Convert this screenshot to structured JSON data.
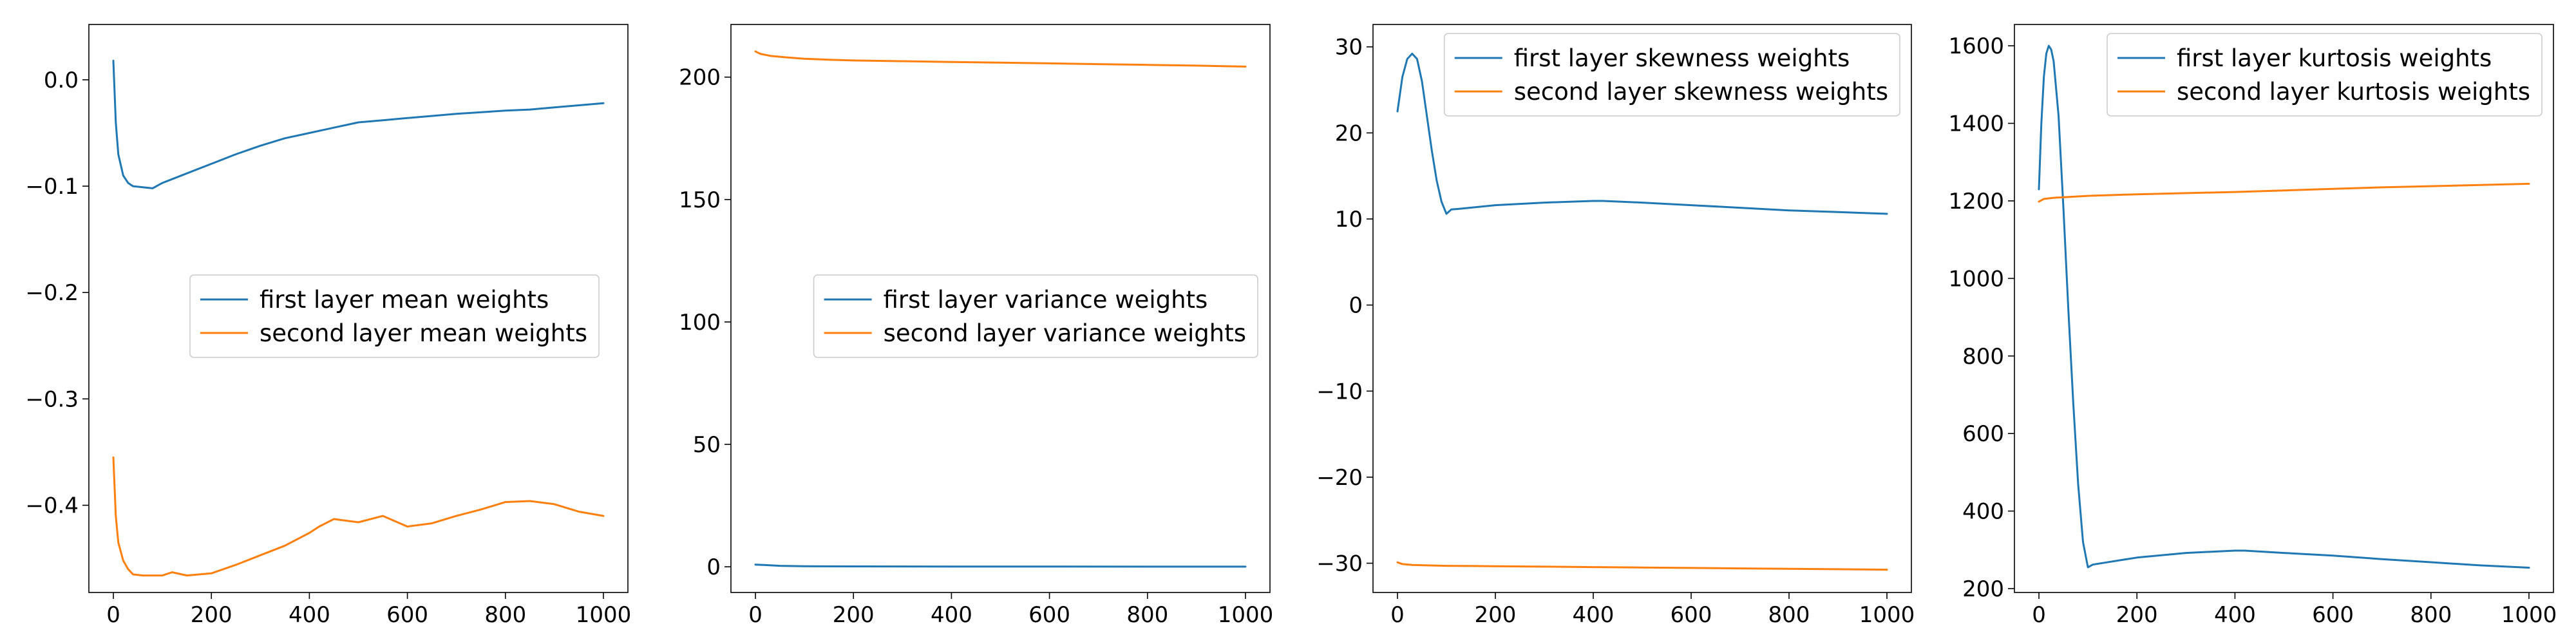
{
  "chart_data": [
    {
      "type": "line",
      "xlim": [
        -50,
        1050
      ],
      "ylim": [
        -0.482,
        0.052
      ],
      "xticks": [
        0,
        200,
        400,
        600,
        800,
        1000
      ],
      "yticks": [
        -0.4,
        -0.3,
        -0.2,
        -0.1,
        0.0
      ],
      "ytick_labels": [
        "−0.4",
        "−0.3",
        "−0.2",
        "−0.1",
        "0.0"
      ],
      "legend_position": "center-right",
      "series": [
        {
          "name": "first layer mean weights",
          "color": "#1f77b4",
          "x": [
            0,
            5,
            10,
            20,
            30,
            40,
            60,
            80,
            100,
            150,
            200,
            250,
            300,
            350,
            400,
            450,
            500,
            550,
            600,
            700,
            800,
            850,
            900,
            950,
            1000
          ],
          "y": [
            0.018,
            -0.04,
            -0.07,
            -0.09,
            -0.097,
            -0.1,
            -0.101,
            -0.102,
            -0.097,
            -0.088,
            -0.079,
            -0.07,
            -0.062,
            -0.055,
            -0.05,
            -0.045,
            -0.04,
            -0.038,
            -0.036,
            -0.032,
            -0.029,
            -0.028,
            -0.026,
            -0.024,
            -0.022
          ]
        },
        {
          "name": "second layer mean weights",
          "color": "#ff7f0e",
          "x": [
            0,
            5,
            10,
            20,
            30,
            40,
            60,
            80,
            100,
            120,
            150,
            200,
            250,
            300,
            350,
            400,
            420,
            450,
            500,
            550,
            600,
            650,
            700,
            750,
            800,
            850,
            900,
            950,
            1000
          ],
          "y": [
            -0.355,
            -0.41,
            -0.435,
            -0.452,
            -0.46,
            -0.465,
            -0.466,
            -0.466,
            -0.466,
            -0.463,
            -0.466,
            -0.464,
            -0.456,
            -0.447,
            -0.438,
            -0.426,
            -0.42,
            -0.413,
            -0.416,
            -0.41,
            -0.42,
            -0.417,
            -0.41,
            -0.404,
            -0.397,
            -0.396,
            -0.399,
            -0.406,
            -0.41
          ]
        }
      ]
    },
    {
      "type": "line",
      "xlim": [
        -50,
        1050
      ],
      "ylim": [
        -10.5,
        221.5
      ],
      "xticks": [
        0,
        200,
        400,
        600,
        800,
        1000
      ],
      "yticks": [
        0,
        50,
        100,
        150,
        200
      ],
      "ytick_labels": [
        "0",
        "50",
        "100",
        "150",
        "200"
      ],
      "legend_position": "center-right",
      "series": [
        {
          "name": "first layer variance weights",
          "color": "#1f77b4",
          "x": [
            0,
            20,
            50,
            100,
            200,
            400,
            600,
            800,
            1000
          ],
          "y": [
            0.9,
            0.7,
            0.4,
            0.2,
            0.15,
            0.1,
            0.1,
            0.05,
            0.05
          ]
        },
        {
          "name": "second layer variance weights",
          "color": "#ff7f0e",
          "x": [
            0,
            10,
            30,
            60,
            100,
            150,
            200,
            300,
            400,
            500,
            600,
            700,
            800,
            900,
            1000
          ],
          "y": [
            210.5,
            209.5,
            208.7,
            208.1,
            207.5,
            207.1,
            206.8,
            206.5,
            206.2,
            205.9,
            205.6,
            205.3,
            205.0,
            204.7,
            204.3
          ]
        }
      ]
    },
    {
      "type": "line",
      "xlim": [
        -50,
        1050
      ],
      "ylim": [
        -33.4,
        32.6
      ],
      "xticks": [
        0,
        200,
        400,
        600,
        800,
        1000
      ],
      "yticks": [
        -30,
        -20,
        -10,
        0,
        10,
        20,
        30
      ],
      "ytick_labels": [
        "−30",
        "−20",
        "−10",
        "0",
        "10",
        "20",
        "30"
      ],
      "legend_position": "upper-right",
      "series": [
        {
          "name": "first layer skewness weights",
          "color": "#1f77b4",
          "x": [
            0,
            10,
            20,
            30,
            40,
            50,
            60,
            70,
            80,
            90,
            100,
            110,
            130,
            200,
            300,
            400,
            420,
            500,
            600,
            700,
            800,
            900,
            1000
          ],
          "y": [
            22.5,
            26.5,
            28.6,
            29.2,
            28.6,
            26.0,
            22.0,
            18.0,
            14.5,
            12.0,
            10.6,
            11.1,
            11.2,
            11.6,
            11.9,
            12.1,
            12.1,
            11.9,
            11.6,
            11.3,
            11.0,
            10.8,
            10.6
          ]
        },
        {
          "name": "second layer skewness weights",
          "color": "#ff7f0e",
          "x": [
            0,
            10,
            30,
            60,
            100,
            200,
            300,
            400,
            500,
            600,
            700,
            800,
            900,
            1000
          ],
          "y": [
            -29.9,
            -30.1,
            -30.2,
            -30.25,
            -30.3,
            -30.35,
            -30.4,
            -30.45,
            -30.5,
            -30.55,
            -30.6,
            -30.65,
            -30.7,
            -30.75
          ]
        }
      ]
    },
    {
      "type": "line",
      "xlim": [
        -50,
        1050
      ],
      "ylim": [
        190,
        1655
      ],
      "xticks": [
        0,
        200,
        400,
        600,
        800,
        1000
      ],
      "yticks": [
        200,
        400,
        600,
        800,
        1000,
        1200,
        1400,
        1600
      ],
      "ytick_labels": [
        "200",
        "400",
        "600",
        "800",
        "1000",
        "1200",
        "1400",
        "1600"
      ],
      "legend_position": "upper-right",
      "series": [
        {
          "name": "first layer kurtosis weights",
          "color": "#1f77b4",
          "x": [
            0,
            5,
            10,
            15,
            20,
            25,
            30,
            40,
            50,
            60,
            70,
            80,
            90,
            100,
            110,
            150,
            200,
            300,
            400,
            420,
            500,
            600,
            700,
            800,
            900,
            1000
          ],
          "y": [
            1230,
            1400,
            1520,
            1580,
            1600,
            1590,
            1560,
            1420,
            1180,
            920,
            680,
            470,
            320,
            255,
            262,
            270,
            280,
            292,
            298,
            298,
            292,
            285,
            276,
            268,
            260,
            254
          ]
        },
        {
          "name": "second layer kurtosis weights",
          "color": "#ff7f0e",
          "x": [
            0,
            10,
            30,
            60,
            100,
            200,
            300,
            400,
            500,
            600,
            700,
            800,
            900,
            1000
          ],
          "y": [
            1198,
            1205,
            1208,
            1210,
            1213,
            1217,
            1220,
            1223,
            1227,
            1231,
            1235,
            1238,
            1241,
            1244
          ]
        }
      ]
    }
  ]
}
